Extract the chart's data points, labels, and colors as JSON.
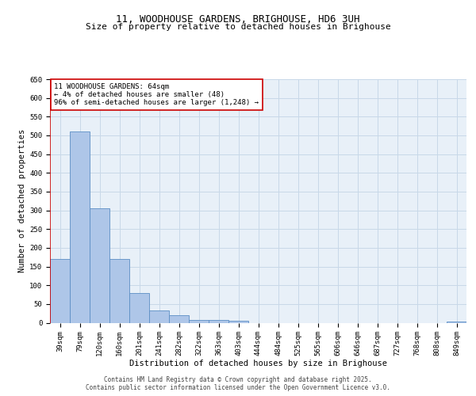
{
  "title_line1": "11, WOODHOUSE GARDENS, BRIGHOUSE, HD6 3UH",
  "title_line2": "Size of property relative to detached houses in Brighouse",
  "xlabel": "Distribution of detached houses by size in Brighouse",
  "ylabel": "Number of detached properties",
  "categories": [
    "39sqm",
    "79sqm",
    "120sqm",
    "160sqm",
    "201sqm",
    "241sqm",
    "282sqm",
    "322sqm",
    "363sqm",
    "403sqm",
    "444sqm",
    "484sqm",
    "525sqm",
    "565sqm",
    "606sqm",
    "646sqm",
    "687sqm",
    "727sqm",
    "768sqm",
    "808sqm",
    "849sqm"
  ],
  "values": [
    170,
    510,
    305,
    170,
    80,
    33,
    20,
    8,
    8,
    5,
    0,
    0,
    0,
    0,
    0,
    0,
    0,
    0,
    0,
    0,
    4
  ],
  "bar_color": "#aec6e8",
  "bar_edge_color": "#5b8ec4",
  "vline_color": "#cc0000",
  "annotation_text": "11 WOODHOUSE GARDENS: 64sqm\n← 4% of detached houses are smaller (48)\n96% of semi-detached houses are larger (1,248) →",
  "annotation_box_color": "#ffffff",
  "annotation_box_edge_color": "#cc0000",
  "ylim": [
    0,
    650
  ],
  "yticks": [
    0,
    50,
    100,
    150,
    200,
    250,
    300,
    350,
    400,
    450,
    500,
    550,
    600,
    650
  ],
  "grid_color": "#c8d8e8",
  "bg_color": "#e8f0f8",
  "footer_text": "Contains HM Land Registry data © Crown copyright and database right 2025.\nContains public sector information licensed under the Open Government Licence v3.0.",
  "title_fontsize": 9,
  "subtitle_fontsize": 8,
  "axis_label_fontsize": 7.5,
  "tick_fontsize": 6.5,
  "annotation_fontsize": 6.5,
  "footer_fontsize": 5.5
}
